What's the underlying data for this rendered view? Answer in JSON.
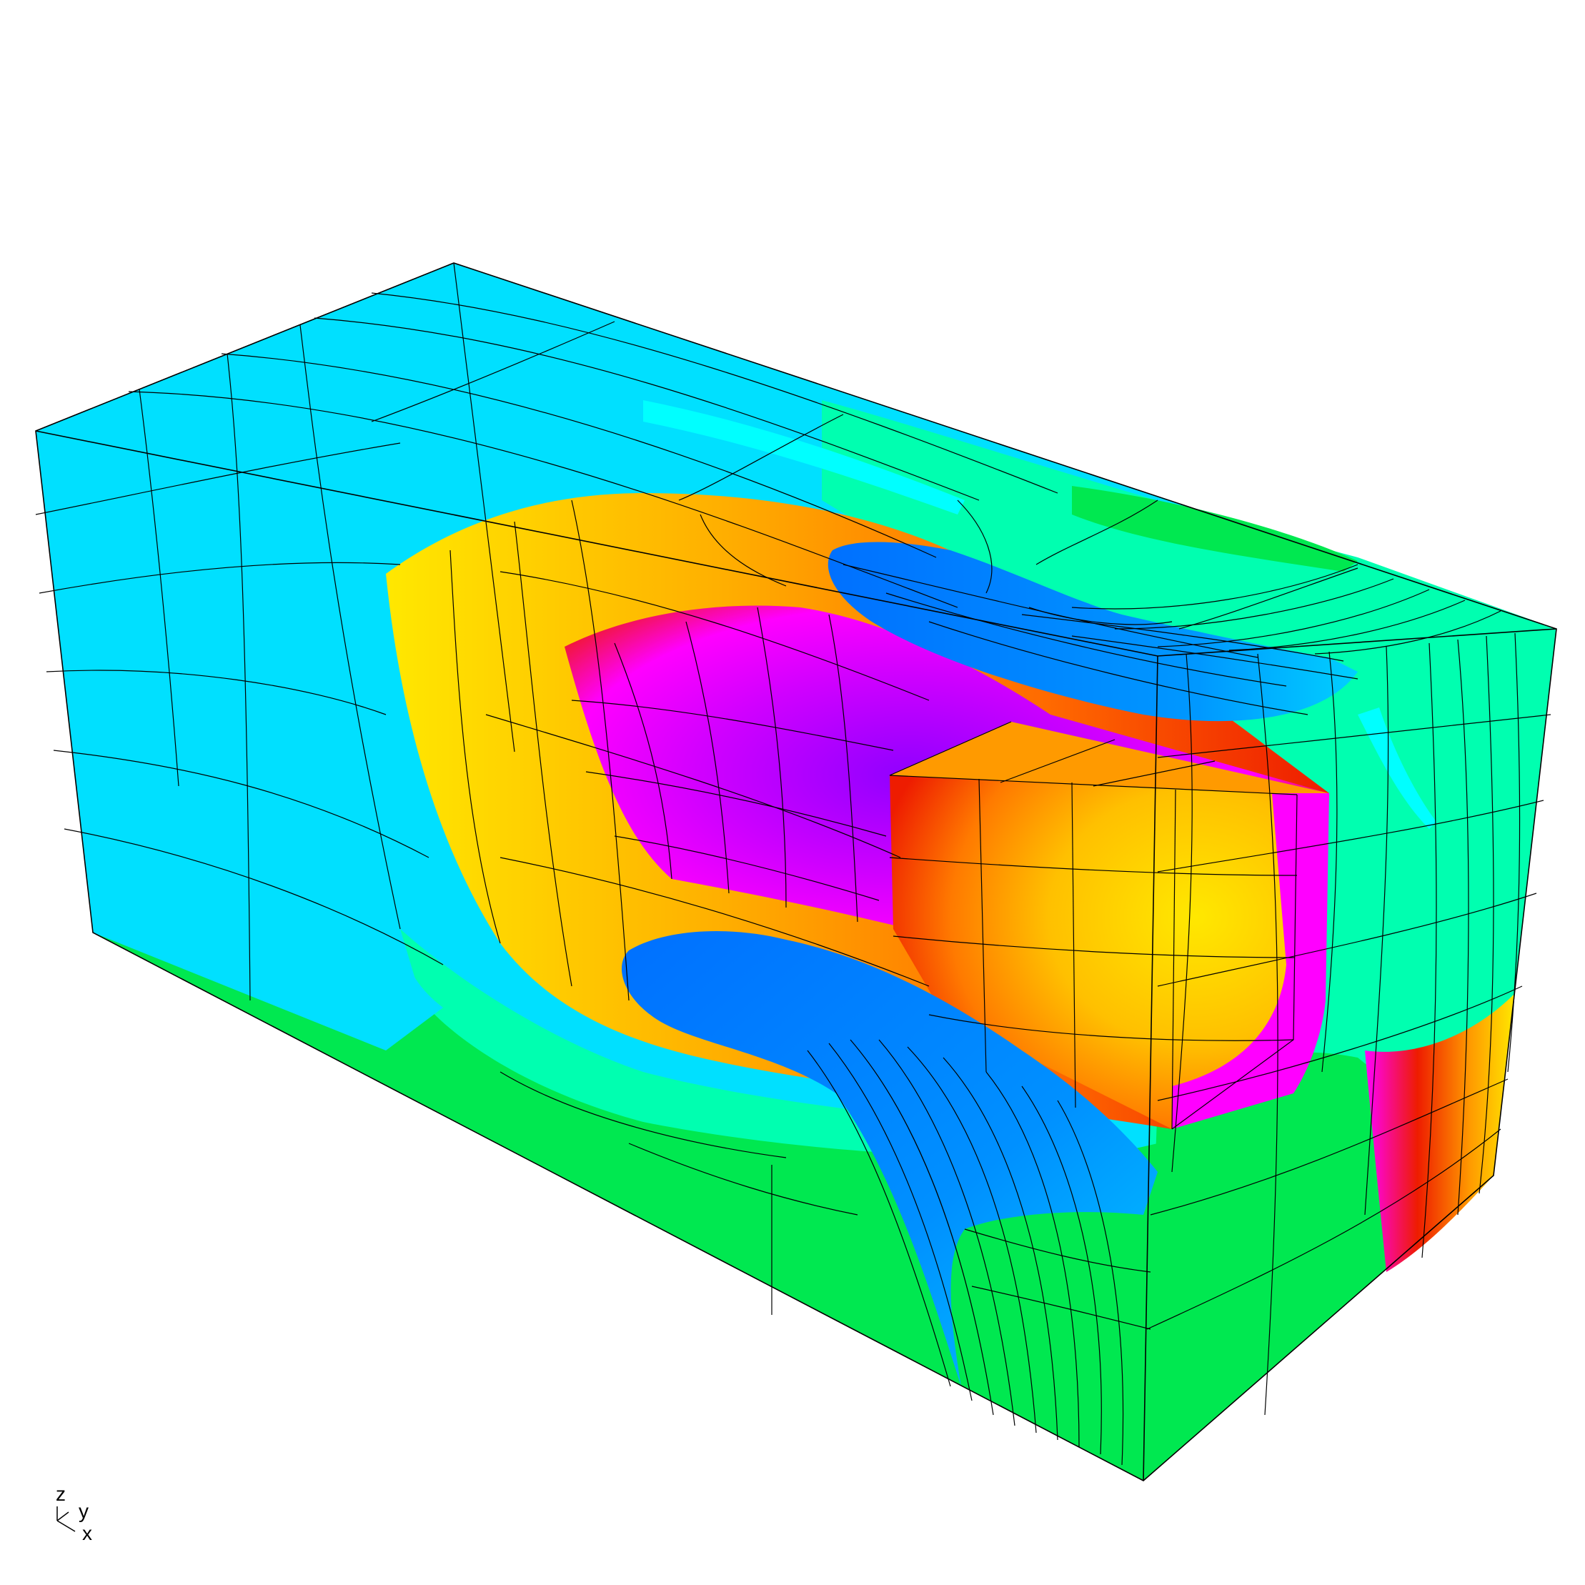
{
  "viewer": {
    "triad": {
      "z_label": "z",
      "y_label": "y",
      "x_label": "x"
    }
  },
  "colormap": {
    "cyan": "#00e0ff",
    "cyan_light": "#00ffff",
    "aqua_green": "#00ffb0",
    "green": "#00e850",
    "blue": "#0070ff",
    "blue_light": "#00b0ff",
    "yellow": "#ffe800",
    "orange": "#ff9a00",
    "red": "#ee1c00",
    "magenta": "#ff00ff",
    "violet": "#9000ff",
    "mesh_line": "#000000",
    "edge": "#000000"
  }
}
